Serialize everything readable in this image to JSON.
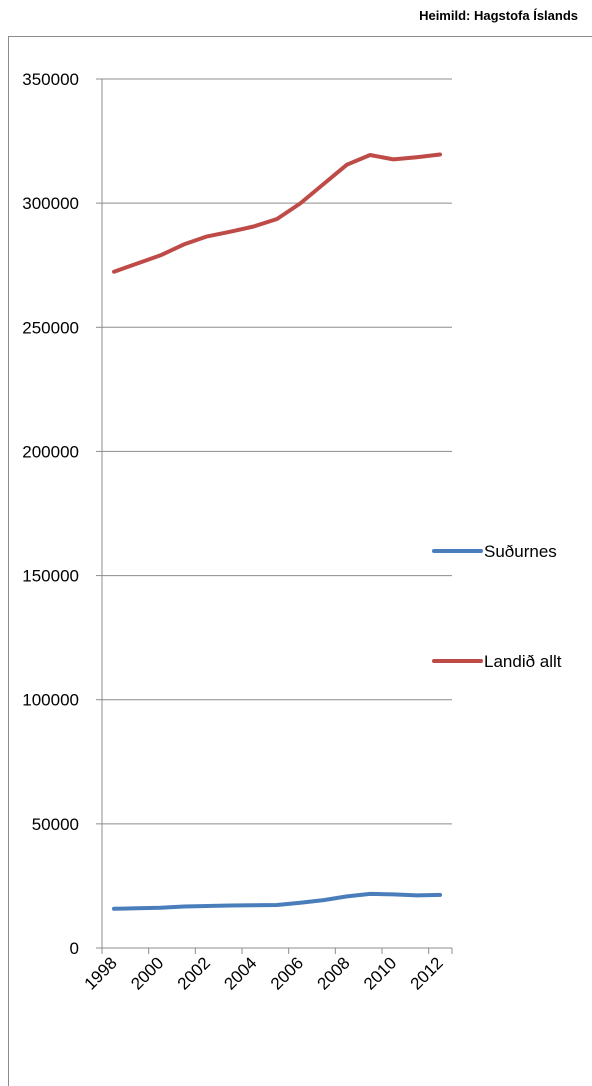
{
  "source_note": "Heimild: Hagstofa Íslands",
  "chart_data": {
    "type": "line",
    "title": "",
    "xlabel": "",
    "ylabel": "",
    "x": [
      1998,
      1999,
      2000,
      2001,
      2002,
      2003,
      2004,
      2005,
      2006,
      2007,
      2008,
      2009,
      2010,
      2011,
      2012
    ],
    "x_tick_labels": [
      "1998",
      "2000",
      "2002",
      "2004",
      "2006",
      "2008",
      "2010",
      "2012"
    ],
    "y_tick_labels": [
      "0",
      "50000",
      "100000",
      "150000",
      "200000",
      "250000",
      "300000",
      "350000"
    ],
    "ylim": [
      0,
      350000
    ],
    "grid": true,
    "legend_position": "right",
    "series": [
      {
        "name": "Suðurnes",
        "color": "#4a7ebb",
        "values": [
          15800,
          16000,
          16200,
          16700,
          16900,
          17100,
          17200,
          17300,
          18200,
          19300,
          20800,
          21800,
          21600,
          21200,
          21400
        ]
      },
      {
        "name": "Landið allt",
        "color": "#be4b48",
        "values": [
          272400,
          275700,
          279000,
          283400,
          286600,
          288500,
          290600,
          293600,
          299900,
          307700,
          315500,
          319400,
          317600,
          318500,
          319600
        ]
      }
    ]
  }
}
